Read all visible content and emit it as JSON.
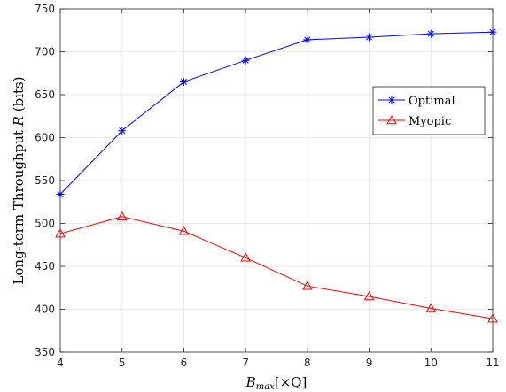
{
  "chart_data": {
    "type": "line",
    "x": [
      4,
      5,
      6,
      7,
      8,
      9,
      10,
      11
    ],
    "xlim": [
      4,
      11
    ],
    "ylim": [
      350,
      750
    ],
    "xticks": [
      4,
      5,
      6,
      7,
      8,
      9,
      10,
      11
    ],
    "yticks": [
      350,
      400,
      450,
      500,
      550,
      600,
      650,
      700,
      750
    ],
    "xlabel": {
      "main": "B",
      "sub": "max",
      "suffix": "[×Q]"
    },
    "ylabel": {
      "prefix": "Long-term Throughput ",
      "var": "R",
      "suffix": " (bits)"
    },
    "grid": true,
    "legend_position": "right, upper-middle",
    "series": [
      {
        "name": "Optimal",
        "color": "#0000ff",
        "marker": "asterisk",
        "values": [
          534,
          608,
          665,
          690,
          714,
          717,
          721,
          723
        ]
      },
      {
        "name": "Myopic",
        "color": "#ff0000",
        "marker": "triangle",
        "values": [
          488,
          508,
          491,
          460,
          427,
          415,
          401,
          389
        ]
      }
    ]
  }
}
